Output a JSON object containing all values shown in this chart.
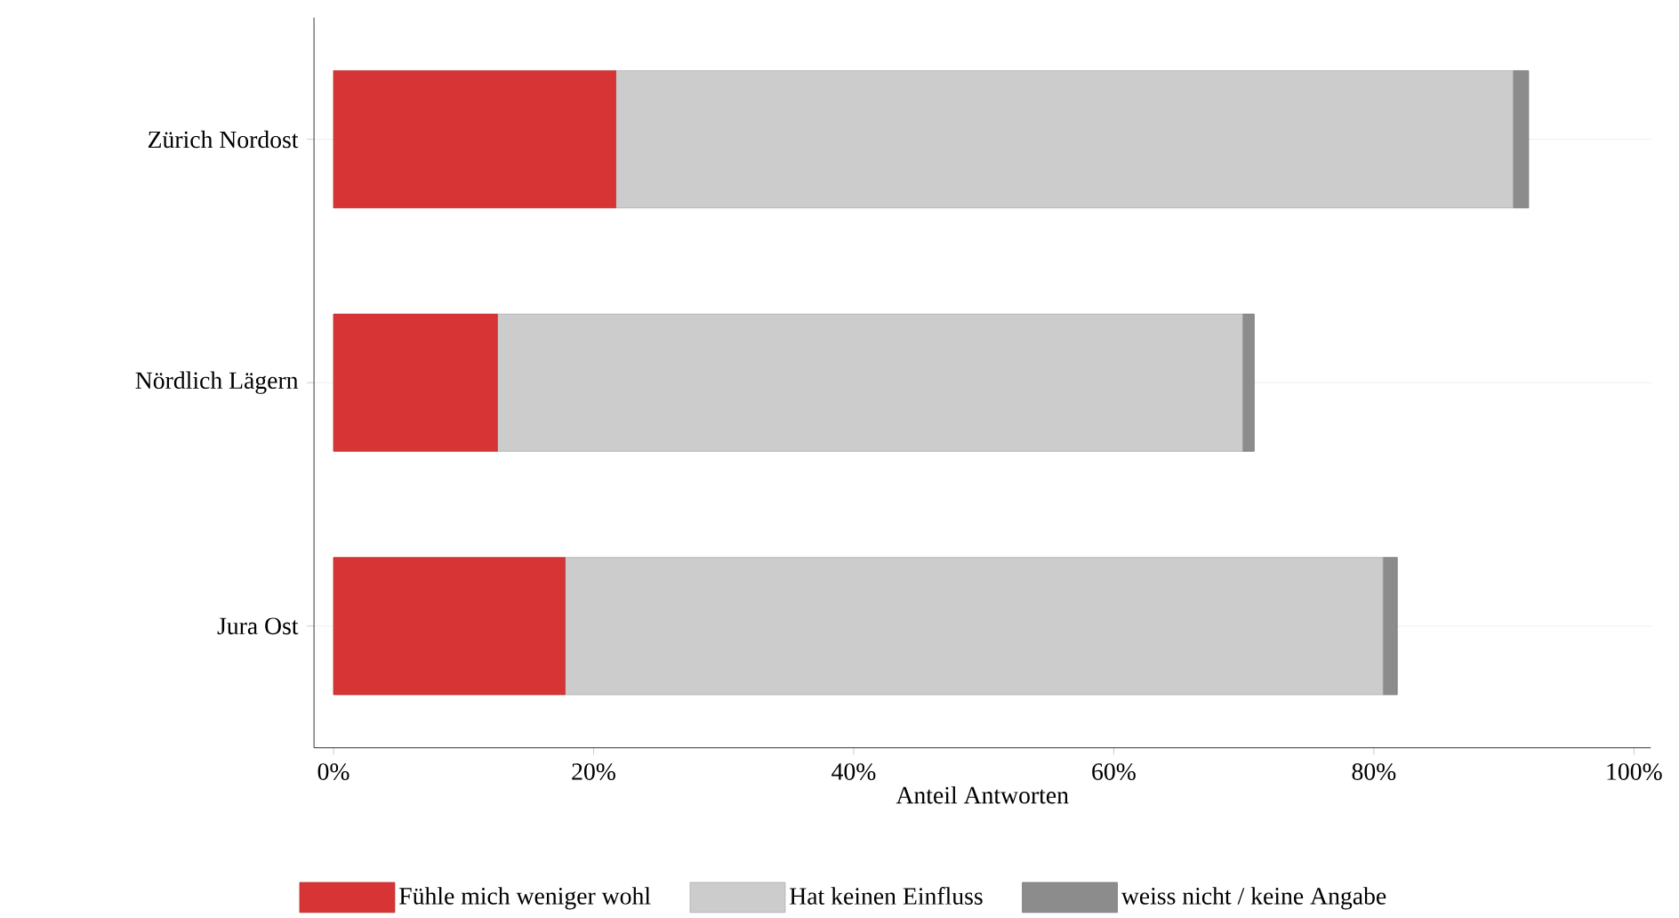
{
  "chart_data": {
    "type": "bar",
    "orientation": "horizontal",
    "stacked": true,
    "xlabel": "Anteil Antworten",
    "categories": [
      "Zürich Nordost",
      "Nördlich Lägern",
      "Jura Ost"
    ],
    "series": [
      {
        "name": "Fühle mich weniger wohl",
        "color": "#d73535",
        "values": [
          21.7,
          12.6,
          17.8
        ]
      },
      {
        "name": "Hat keinen Einfluss",
        "color": "#cccccc",
        "values": [
          69.0,
          57.3,
          62.9
        ]
      },
      {
        "name": "weiss nicht / keine Angabe",
        "color": "#8c8c8c",
        "values": [
          1.2,
          0.9,
          1.1
        ]
      }
    ],
    "xlim": [
      -1.5,
      101.3
    ],
    "xticks": [
      {
        "value": 0,
        "label": "0%"
      },
      {
        "value": 20,
        "label": "20%"
      },
      {
        "value": 40,
        "label": "40%"
      },
      {
        "value": 60,
        "label": "60%"
      },
      {
        "value": 80,
        "label": "80%"
      },
      {
        "value": 100,
        "label": "100%"
      }
    ],
    "grid": "y",
    "legend": "bottom"
  }
}
